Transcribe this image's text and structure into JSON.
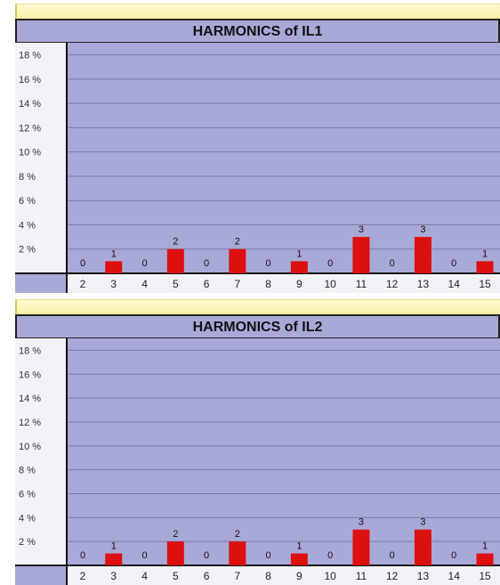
{
  "chart_data": [
    {
      "type": "bar",
      "title": "HARMONICS of IL1",
      "xlabel": "",
      "ylabel": "",
      "categories": [
        "2",
        "3",
        "4",
        "5",
        "6",
        "7",
        "8",
        "9",
        "10",
        "11",
        "12",
        "13",
        "14",
        "15"
      ],
      "values": [
        0,
        1,
        0,
        2,
        0,
        2,
        0,
        1,
        0,
        3,
        0,
        3,
        0,
        1
      ],
      "data_labels": [
        "0",
        "1",
        "0",
        "2",
        "0",
        "2",
        "0",
        "1",
        "0",
        "3",
        "0",
        "3",
        "0",
        "1"
      ],
      "ytick_labels": [
        "2 %",
        "4 %",
        "6 %",
        "8 %",
        "10 %",
        "12 %",
        "14 %",
        "16 %",
        "18 %"
      ],
      "ylim": [
        0,
        19
      ],
      "grid": true,
      "colors": {
        "bar": "#dd1010",
        "plot_bg": "#a9a9d8",
        "axis_bg": "#f2f2f7"
      }
    },
    {
      "type": "bar",
      "title": "HARMONICS of IL2",
      "xlabel": "",
      "ylabel": "",
      "categories": [
        "2",
        "3",
        "4",
        "5",
        "6",
        "7",
        "8",
        "9",
        "10",
        "11",
        "12",
        "13",
        "14",
        "15"
      ],
      "values": [
        0,
        1,
        0,
        2,
        0,
        2,
        0,
        1,
        0,
        3,
        0,
        3,
        0,
        1
      ],
      "data_labels": [
        "0",
        "1",
        "0",
        "2",
        "0",
        "2",
        "0",
        "1",
        "0",
        "3",
        "0",
        "3",
        "0",
        "1"
      ],
      "ytick_labels": [
        "2 %",
        "4 %",
        "6 %",
        "8 %",
        "10 %",
        "12 %",
        "14 %",
        "16 %",
        "18 %"
      ],
      "ylim": [
        0,
        19
      ],
      "grid": true,
      "colors": {
        "bar": "#dd1010",
        "plot_bg": "#a9a9d8",
        "axis_bg": "#f2f2f7"
      }
    }
  ]
}
